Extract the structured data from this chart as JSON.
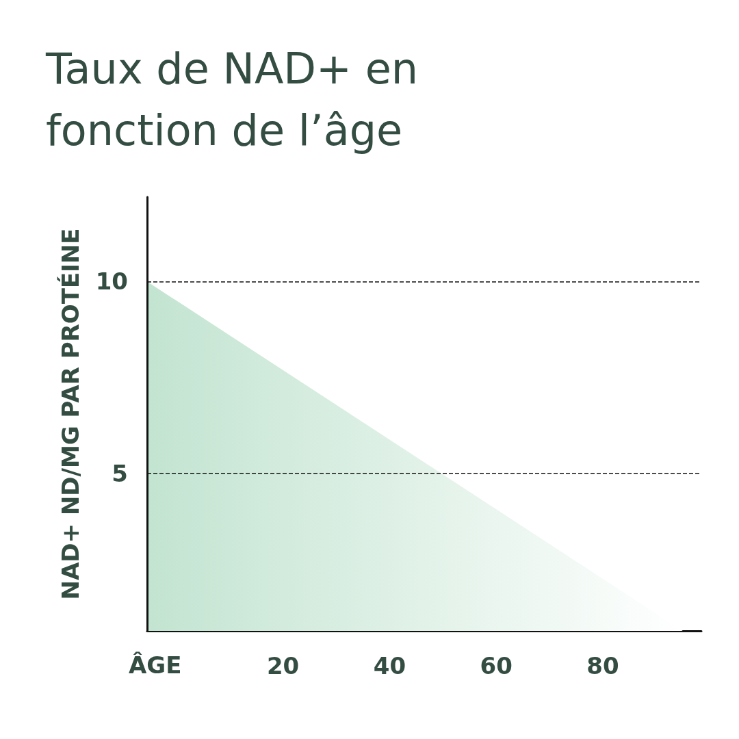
{
  "chart_data": {
    "type": "area",
    "title": "Taux de NAD+ en fonction de l’âge",
    "xlabel": "ÂGE",
    "ylabel": "NAD+ ND/MG PAR PROTÉINE",
    "x": [
      -5.5,
      95
    ],
    "series": [
      {
        "color": "#c3e4d1",
        "values": [
          10,
          0.9
        ]
      }
    ],
    "xlim": [
      -5.5,
      98.5
    ],
    "xticks": [
      20,
      40,
      60,
      80
    ],
    "ylim": [
      0.9,
      12.2
    ],
    "yticks": [
      5,
      10
    ],
    "grid": "y",
    "marker": "none"
  }
}
